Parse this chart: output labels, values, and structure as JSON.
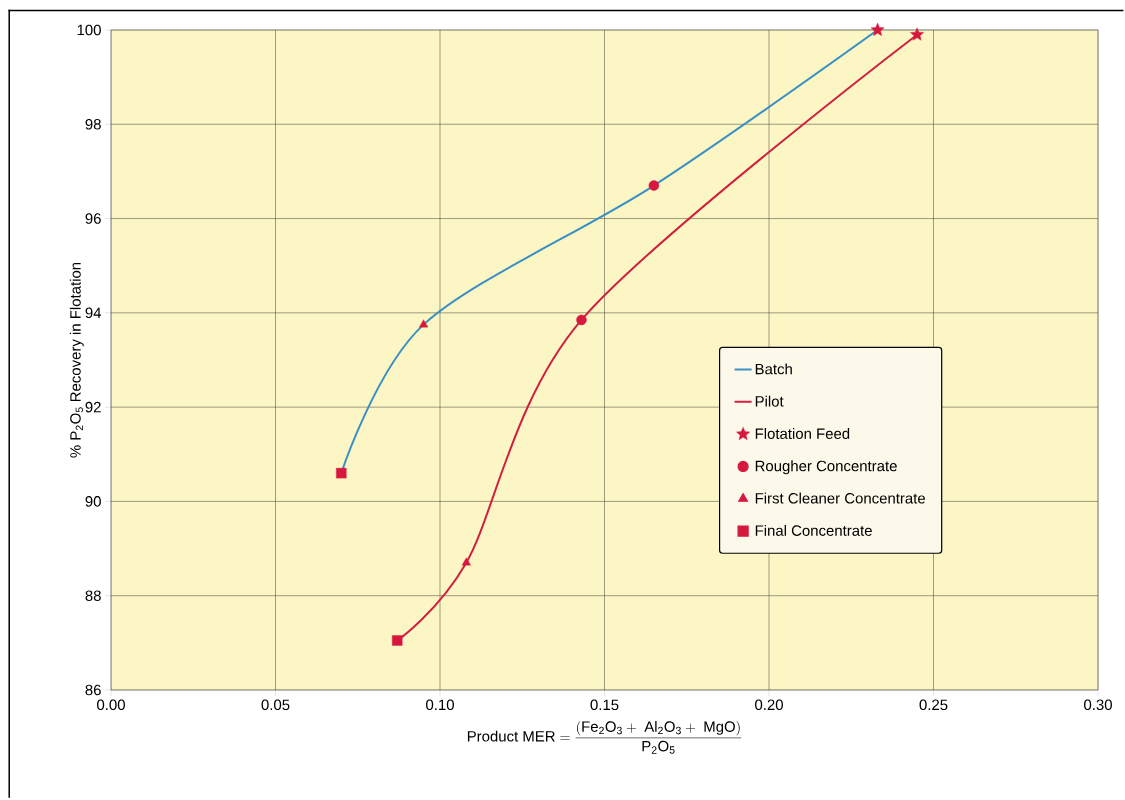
{
  "chart_data": {
    "type": "line",
    "xlabel": "\\mathrm{Product\\ MER} = \\frac{(\\mathrm{Fe_2O_3}+\\ \\mathrm{Al_2O_3}+\\ \\mathrm{MgO})}{\\mathrm{P_2O_5}}",
    "ylabel": "% P$_{2}$O$_{5}$ Recovery in Flotation",
    "xlim": [
      0,
      0.3
    ],
    "ylim": [
      86,
      100
    ],
    "xticks": [
      {
        "value": 0,
        "label": "0.00"
      },
      {
        "value": 0.05,
        "label": "0.05"
      },
      {
        "value": 0.1,
        "label": "0.10"
      },
      {
        "value": 0.15,
        "label": "0.15"
      },
      {
        "value": 0.2,
        "label": "0.20"
      },
      {
        "value": 0.25,
        "label": "0.25"
      },
      {
        "value": 0.3,
        "label": "0.30"
      }
    ],
    "yticks": [
      86,
      88,
      90,
      92,
      94,
      96,
      98,
      100
    ],
    "grid": true,
    "legend": "right",
    "series": [
      {
        "name": "Batch",
        "type": "line",
        "color": "#3a8fc4",
        "marker": "none",
        "x": [
          0.07,
          0.095,
          0.165,
          0.233
        ],
        "values": [
          90.6,
          93.75,
          96.7,
          100.0
        ]
      },
      {
        "name": "Pilot",
        "type": "line",
        "color": "#d0203f",
        "marker": "none",
        "x": [
          0.087,
          0.108,
          0.143,
          0.245
        ],
        "values": [
          87.05,
          88.7,
          93.85,
          99.9
        ]
      },
      {
        "name": "Flotation Feed",
        "type": "scatter",
        "color": "#d6183f",
        "marker": "star",
        "x": [
          0.233,
          0.245
        ],
        "values": [
          100.0,
          99.9
        ]
      },
      {
        "name": "Rougher Concentrate",
        "type": "scatter",
        "color": "#d6183f",
        "marker": "circle",
        "x": [
          0.165,
          0.143
        ],
        "values": [
          96.7,
          93.85
        ]
      },
      {
        "name": "First Cleaner Concentrate",
        "type": "scatter",
        "color": "#d6183f",
        "marker": "triangle",
        "x": [
          0.095,
          0.108
        ],
        "values": [
          93.75,
          88.7
        ]
      },
      {
        "name": "Final Concentrate",
        "type": "scatter",
        "color": "#d6183f",
        "marker": "square",
        "x": [
          0.07,
          0.087
        ],
        "values": [
          90.6,
          87.05
        ]
      }
    ]
  }
}
